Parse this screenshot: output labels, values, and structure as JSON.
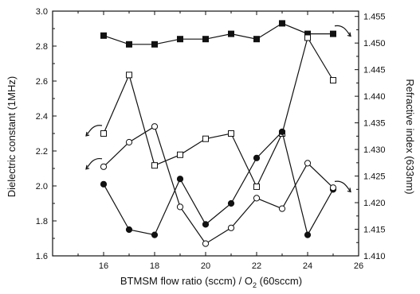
{
  "chart_data": {
    "type": "line",
    "xlabel": "BTMSM flow ratio (sccm) / O2 (60sccm)",
    "xlabel_parts": {
      "main": "BTMSM flow ratio (sccm) / O",
      "sub": "2",
      "tail": " (60sccm)"
    },
    "ylabel_left": "Dielectric constant (1MHz)",
    "ylabel_right": "Refractive index (633nm)",
    "xlim": [
      14,
      26
    ],
    "ylim_left": [
      1.6,
      3.0
    ],
    "ylim_right": [
      1.41,
      1.456
    ],
    "x_ticks": [
      "16",
      "18",
      "20",
      "22",
      "24",
      "26"
    ],
    "y_left_ticks": [
      "1.6",
      "1.8",
      "2.0",
      "2.2",
      "2.4",
      "2.6",
      "2.8",
      "3.0"
    ],
    "y_right_ticks": [
      "1.410",
      "1.415",
      "1.420",
      "1.425",
      "1.430",
      "1.435",
      "1.440",
      "1.445",
      "1.450",
      "1.455"
    ],
    "x": [
      16,
      17,
      18,
      19,
      20,
      21,
      22,
      23,
      24,
      25
    ],
    "series": [
      {
        "marker": "square-filled",
        "axis": "left",
        "values": [
          2.86,
          2.81,
          2.81,
          2.84,
          2.84,
          2.87,
          2.84,
          2.93,
          2.87,
          2.87
        ]
      },
      {
        "marker": "square-open",
        "axis": "right",
        "values": [
          1.433,
          1.444,
          1.427,
          1.429,
          1.432,
          1.433,
          1.423,
          1.433,
          1.451,
          1.443
        ]
      },
      {
        "marker": "circle-filled",
        "axis": "left",
        "values": [
          2.01,
          1.75,
          1.72,
          2.04,
          1.78,
          1.9,
          2.16,
          2.31,
          1.72,
          1.98
        ]
      },
      {
        "marker": "circle-open",
        "axis": "left",
        "values": [
          2.11,
          2.25,
          2.34,
          1.88,
          1.67,
          1.76,
          1.93,
          1.87,
          2.13,
          1.99
        ]
      }
    ],
    "grid": false,
    "legend": "none"
  }
}
